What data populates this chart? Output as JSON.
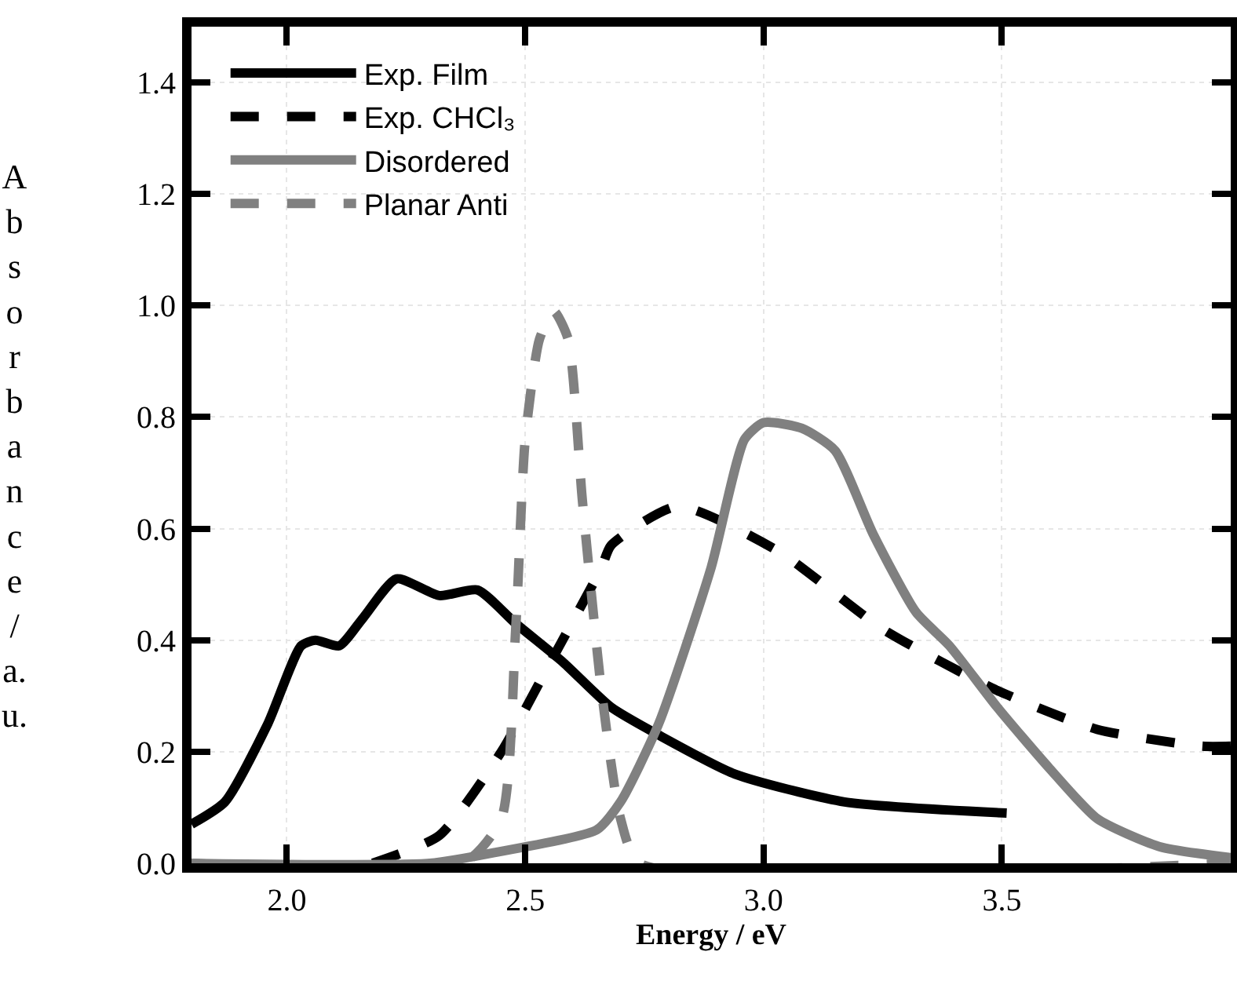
{
  "chart_data": {
    "type": "line",
    "xlabel": "Energy / eV",
    "ylabel": "Absorbance / a.u.",
    "xlim": [
      1.8,
      3.98
    ],
    "ylim": [
      0,
      1.5
    ],
    "xticks": [
      {
        "value": 2,
        "label": "2.0"
      },
      2.5,
      {
        "value": 3,
        "label": "3.0"
      },
      3.5
    ],
    "yticks": [
      {
        "value": 0,
        "label": "0.0"
      },
      0.2,
      0.4,
      0.6,
      0.8,
      {
        "value": 1,
        "label": "1.0"
      },
      1.2,
      1.4
    ],
    "grid": true,
    "legend": "top left",
    "marker": "none",
    "series": [
      {
        "name": "Exp. Film",
        "color": "#000000",
        "line_style": "solid",
        "x": [
          1.8,
          1.87,
          1.96,
          2.03,
          2.06,
          2.11,
          2.16,
          2.23,
          2.32,
          2.4,
          2.48,
          2.58,
          2.68,
          2.78,
          2.94,
          3.17,
          3.51
        ],
        "values": [
          0.07,
          0.11,
          0.25,
          0.39,
          0.4,
          0.39,
          0.44,
          0.51,
          0.48,
          0.49,
          0.43,
          0.36,
          0.28,
          0.23,
          0.16,
          0.11,
          0.09
        ]
      },
      {
        "name": "Exp. CHCl₃",
        "color": "#000000",
        "line_style": "dashed",
        "x": [
          2.18,
          2.32,
          2.45,
          2.54,
          2.66,
          2.68,
          2.82,
          3.03,
          3.25,
          3.49,
          3.7,
          3.92,
          3.98
        ],
        "values": [
          0,
          0.05,
          0.2,
          0.34,
          0.53,
          0.57,
          0.64,
          0.56,
          0.42,
          0.31,
          0.24,
          0.21,
          0.21
        ]
      },
      {
        "name": "Disordered",
        "color": "#808080",
        "line_style": "solid",
        "x": [
          1.8,
          2.3,
          2.44,
          2.65,
          2.7,
          2.78,
          2.89,
          2.96,
          3.0,
          3.08,
          3.15,
          3.23,
          3.32,
          3.39,
          3.49,
          3.6,
          3.7,
          3.83,
          3.98
        ],
        "values": [
          0,
          0,
          0.02,
          0.06,
          0.11,
          0.25,
          0.53,
          0.76,
          0.79,
          0.78,
          0.74,
          0.59,
          0.45,
          0.39,
          0.28,
          0.17,
          0.08,
          0.03,
          0.01
        ]
      },
      {
        "name": "Planar Anti",
        "color": "#808080",
        "line_style": "dashed",
        "x": [
          1.8,
          2.37,
          2.45,
          2.48,
          2.5,
          2.53,
          2.56,
          2.59,
          2.62,
          2.66,
          2.7,
          2.74,
          3.98
        ],
        "values": [
          0,
          0,
          0.08,
          0.42,
          0.76,
          0.94,
          0.99,
          0.94,
          0.65,
          0.31,
          0.08,
          0,
          0
        ]
      }
    ]
  }
}
